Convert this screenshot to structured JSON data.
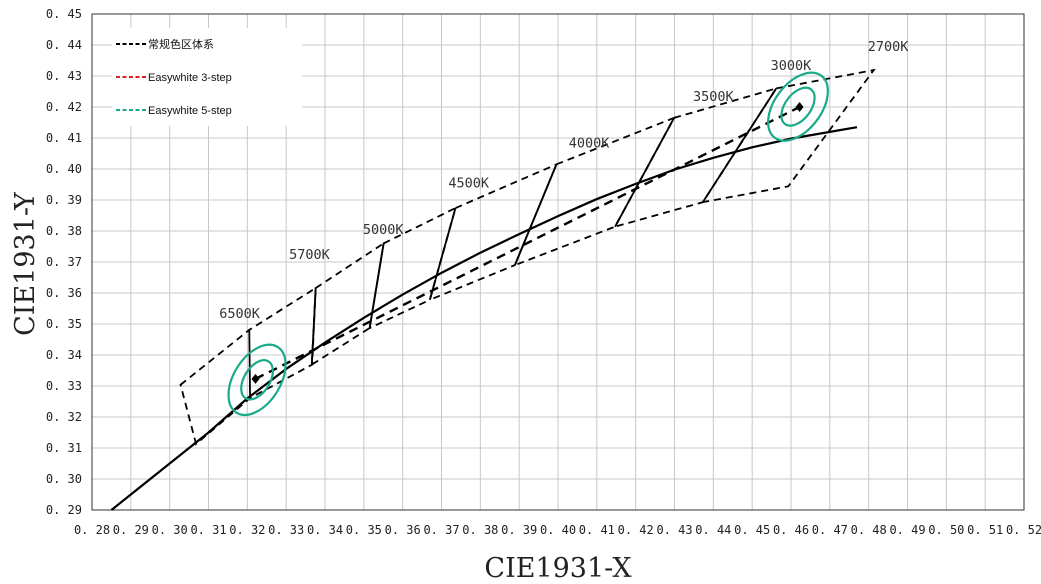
{
  "chart_data": {
    "type": "scatter",
    "title": "",
    "xlabel": "CIE1931-X",
    "ylabel": "CIE1931-Y",
    "xlim": [
      0.28,
      0.52
    ],
    "ylim": [
      0.29,
      0.45
    ],
    "xticks": [
      0.28,
      0.29,
      0.3,
      0.31,
      0.32,
      0.33,
      0.34,
      0.35,
      0.36,
      0.37,
      0.38,
      0.39,
      0.4,
      0.41,
      0.42,
      0.43,
      0.44,
      0.45,
      0.46,
      0.47,
      0.48,
      0.49,
      0.5,
      0.51,
      0.52
    ],
    "yticks": [
      0.29,
      0.3,
      0.31,
      0.32,
      0.33,
      0.34,
      0.35,
      0.36,
      0.37,
      0.38,
      0.39,
      0.4,
      0.41,
      0.42,
      0.43,
      0.44,
      0.45
    ],
    "grid": true,
    "legend_position": "top-left",
    "legend": [
      {
        "label": "常规色区体系",
        "color": "#000000",
        "dash": "dashed"
      },
      {
        "label": "Easywhite 3-step",
        "color": "#e02020",
        "dash": "dashed"
      },
      {
        "label": "Easywhite 5-step",
        "color": "#1aaa8a",
        "dash": "dashed"
      }
    ],
    "planckian_locus": [
      [
        0.285,
        0.29
      ],
      [
        0.3,
        0.305
      ],
      [
        0.31,
        0.315
      ],
      [
        0.32,
        0.326
      ],
      [
        0.33,
        0.3355
      ],
      [
        0.34,
        0.344
      ],
      [
        0.35,
        0.352
      ],
      [
        0.36,
        0.3595
      ],
      [
        0.37,
        0.3665
      ],
      [
        0.38,
        0.373
      ],
      [
        0.39,
        0.379
      ],
      [
        0.4,
        0.3848
      ],
      [
        0.41,
        0.3903
      ],
      [
        0.42,
        0.3952
      ],
      [
        0.43,
        0.3998
      ],
      [
        0.44,
        0.4036
      ],
      [
        0.45,
        0.407
      ],
      [
        0.46,
        0.4098
      ],
      [
        0.477,
        0.4135
      ]
    ],
    "quadrangles": [
      {
        "cct": "6500K",
        "label_at": [
          0.318,
          0.352
        ],
        "points": [
          [
            0.3028,
            0.3304
          ],
          [
            0.3205,
            0.3481
          ],
          [
            0.3376,
            0.3616
          ],
          [
            0.3367,
            0.3369
          ],
          [
            0.3207,
            0.3261
          ],
          [
            0.3068,
            0.3113
          ]
        ]
      },
      {
        "cct": "5700K",
        "label_at": [
          0.336,
          0.371
        ],
        "points": [
          [
            0.3376,
            0.3616
          ],
          [
            0.3551,
            0.376
          ],
          [
            0.3515,
            0.3487
          ],
          [
            0.3366,
            0.3369
          ]
        ]
      },
      {
        "cct": "5000K",
        "label_at": [
          0.355,
          0.379
        ],
        "points": [
          [
            0.3551,
            0.376
          ],
          [
            0.3736,
            0.3874
          ],
          [
            0.367,
            0.3578
          ],
          [
            0.3515,
            0.3487
          ]
        ]
      },
      {
        "cct": "4500K",
        "label_at": [
          0.377,
          0.394
        ],
        "points": [
          [
            0.3736,
            0.3874
          ],
          [
            0.3996,
            0.4015
          ],
          [
            0.3889,
            0.369
          ],
          [
            0.367,
            0.3578
          ]
        ]
      },
      {
        "cct": "4000K",
        "label_at": [
          0.408,
          0.407
        ],
        "points": [
          [
            0.3996,
            0.4015
          ],
          [
            0.4299,
            0.4165
          ],
          [
            0.4147,
            0.3814
          ],
          [
            0.3889,
            0.369
          ]
        ]
      },
      {
        "cct": "3500K",
        "label_at": [
          0.44,
          0.422
        ],
        "points": [
          [
            0.4299,
            0.4165
          ],
          [
            0.4562,
            0.426
          ],
          [
            0.4373,
            0.3893
          ],
          [
            0.4147,
            0.3814
          ]
        ]
      },
      {
        "cct": "3000K",
        "label_at": [
          0.46,
          0.432
        ],
        "points": [
          [
            0.4562,
            0.426
          ],
          [
            0.4813,
            0.4319
          ],
          [
            0.4593,
            0.3944
          ],
          [
            0.4373,
            0.3893
          ]
        ]
      },
      {
        "cct": "2700K",
        "label_at": [
          0.485,
          0.438
        ],
        "points": []
      }
    ],
    "ellipses": [
      {
        "center": [
          0.3225,
          0.332
        ],
        "rx": [
          0.0033,
          0.006
        ],
        "ry": [
          0.007,
          0.0125
        ],
        "angle_deg": 58
      },
      {
        "center": [
          0.4618,
          0.4201
        ],
        "rx": [
          0.0033,
          0.006
        ],
        "ry": [
          0.007,
          0.0125
        ],
        "angle_deg": 53
      }
    ],
    "centers": [
      [
        0.3221,
        0.3323
      ],
      [
        0.4622,
        0.42
      ]
    ],
    "center_dashed_line": [
      [
        0.3221,
        0.3323
      ],
      [
        0.4622,
        0.42
      ]
    ]
  }
}
